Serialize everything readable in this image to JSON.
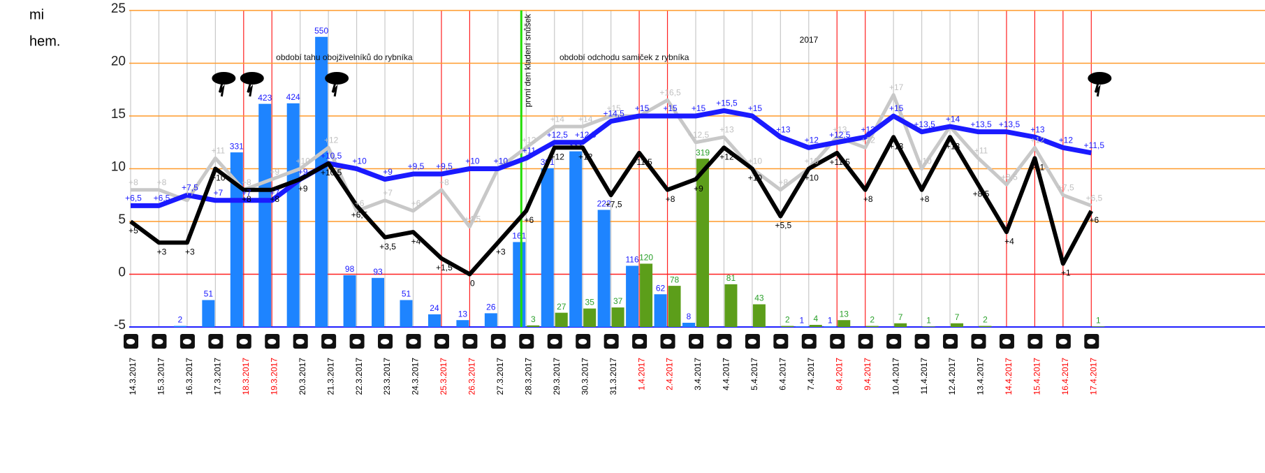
{
  "side_text": [
    "mi",
    "hem."
  ],
  "chart_data": {
    "type": "combo",
    "big_label": "2017",
    "annotations": [
      {
        "text": "období tahu obojživelníků do rybníka",
        "index": 7
      },
      {
        "text": "období odchodu samiček z rybníka",
        "index": 20
      }
    ],
    "marker": {
      "text": "první den kladení snůšek",
      "index": 14,
      "color": "#22dd00"
    },
    "categories": [
      "14.3.2017",
      "15.3.2017",
      "16.3.2017",
      "17.3.2017",
      "18.3.2017",
      "19.3.2017",
      "20.3.2017",
      "21.3.2017",
      "22.3.2017",
      "23.3.2017",
      "24.3.2017",
      "25.3.2017",
      "26.3.2017",
      "27.3.2017",
      "28.3.2017",
      "29.3.2017",
      "30.3.2017",
      "31.3.2017",
      "1.4.2017",
      "2.4.2017",
      "3.4.2017",
      "4.4.2017",
      "5.4.2017",
      "6.4.2017",
      "7.4.2017",
      "8.4.2017",
      "9.4.2017",
      "10.4.2017",
      "11.4.2017",
      "12.4.2017",
      "13.4.2017",
      "14.4.2017",
      "15.4.2017",
      "16.4.2017",
      "17.4.2017"
    ],
    "category_colors": [
      "#000",
      "#000",
      "#000",
      "#000",
      "#f00",
      "#f00",
      "#000",
      "#000",
      "#000",
      "#000",
      "#000",
      "#f00",
      "#f00",
      "#000",
      "#000",
      "#000",
      "#000",
      "#000",
      "#f00",
      "#f00",
      "#000",
      "#000",
      "#000",
      "#000",
      "#000",
      "#f00",
      "#f00",
      "#000",
      "#000",
      "#000",
      "#000",
      "#f00",
      "#f00",
      "#f00",
      "#f00"
    ],
    "ylim": [
      -5,
      25
    ],
    "yticks": [
      -5,
      0,
      5,
      10,
      15,
      20,
      25
    ],
    "y2lim": [
      0,
      600
    ],
    "grid": true,
    "bars": [
      {
        "color": "#1e84ff",
        "label_color": "#1a1aff",
        "offset": -1,
        "values": [
          null,
          null,
          2,
          51,
          331,
          423,
          424,
          550,
          98,
          93,
          51,
          24,
          13,
          26,
          161,
          301,
          333,
          222,
          116,
          62,
          8,
          null,
          null,
          null,
          1,
          1,
          null,
          null,
          null,
          null,
          null,
          null,
          null,
          null,
          null
        ]
      },
      {
        "color": "#5c9e1a",
        "label_color": "#2aa02a",
        "offset": 1,
        "values": [
          null,
          null,
          null,
          null,
          null,
          null,
          null,
          null,
          null,
          null,
          null,
          null,
          null,
          null,
          3,
          27,
          35,
          37,
          120,
          78,
          319,
          81,
          43,
          2,
          4,
          13,
          2,
          7,
          1,
          7,
          2,
          null,
          null,
          null,
          1
        ]
      }
    ],
    "series": [
      {
        "color": "#c8c8c8",
        "label_color": "#c0c0c0",
        "width": 5,
        "values": [
          8,
          8,
          7,
          11,
          8,
          9,
          10,
          12,
          6,
          7,
          6,
          8,
          4.5,
          10,
          12,
          14,
          14,
          15,
          15,
          16.5,
          12.5,
          13,
          10,
          8,
          10,
          13,
          12,
          17,
          10,
          14,
          11,
          8.5,
          12,
          7.5,
          6.5
        ],
        "value_labels": [
          "+8",
          "+8",
          "+7",
          "+11",
          "+8",
          "+9",
          "+10",
          "+12",
          "+6",
          "+7",
          "+6",
          "+8",
          "+4,5",
          "+10",
          "+12",
          "+14",
          "+14",
          "+15",
          "+15",
          "+16,5",
          "+12,5",
          "+13",
          "+10",
          "+8",
          "+10",
          "+13",
          "+12",
          "+17",
          "+10",
          "+14",
          "+11",
          "+8,5",
          "+12",
          "+7,5",
          "+6,5"
        ]
      },
      {
        "color": "#1a1aff",
        "label_color": "#1a1aff",
        "width": 7,
        "values": [
          6.5,
          6.5,
          7.5,
          7,
          7,
          7,
          9,
          10.5,
          10,
          9,
          9.5,
          9.5,
          10,
          10,
          11,
          12.5,
          12.5,
          14.5,
          15,
          15,
          15,
          15.5,
          15,
          13,
          12,
          12.5,
          13,
          15,
          13.5,
          14,
          13.5,
          13.5,
          13,
          12,
          11.5
        ],
        "value_labels": [
          "+6,5",
          "+6,5",
          "+7,5",
          "+7",
          "+7",
          "+7",
          "+9",
          "+10,5",
          "+10",
          "+9",
          "+9,5",
          "+9,5",
          "+10",
          "+10",
          "+11",
          "+12,5",
          "+12,5",
          "+14,5",
          "+15",
          "+15",
          "+15",
          "+15,5",
          "+15",
          "+13",
          "+12",
          "+12,5",
          "+13",
          "+15",
          "+13,5",
          "+14",
          "+13,5",
          "+13,5",
          "+13",
          "+12",
          "+11,5"
        ]
      },
      {
        "color": "#000000",
        "label_color": "#000000",
        "width": 6,
        "values": [
          5,
          3,
          3,
          10,
          8,
          8,
          9,
          10.5,
          6.5,
          3.5,
          4,
          1.5,
          0,
          3,
          6,
          12,
          12,
          7.5,
          11.5,
          8,
          9,
          12,
          10,
          5.5,
          10,
          11.5,
          8,
          13,
          8,
          13,
          8.5,
          4,
          11,
          1,
          6
        ],
        "value_labels": [
          "+5",
          "+3",
          "+3",
          "+10",
          "+8",
          "+8",
          "+9",
          "+10,5",
          "+6,5",
          "+3,5",
          "+4",
          "+1,5",
          "0",
          "+3",
          "+6",
          "+12",
          "+12",
          "+7,5",
          "+11,5",
          "+8",
          "+9",
          "+12",
          "+10",
          "+5,5",
          "+10",
          "+11,5",
          "+8",
          "+13",
          "+8",
          "+13",
          "+8,5",
          "+4",
          "+11",
          "+1",
          "+6"
        ]
      }
    ]
  }
}
